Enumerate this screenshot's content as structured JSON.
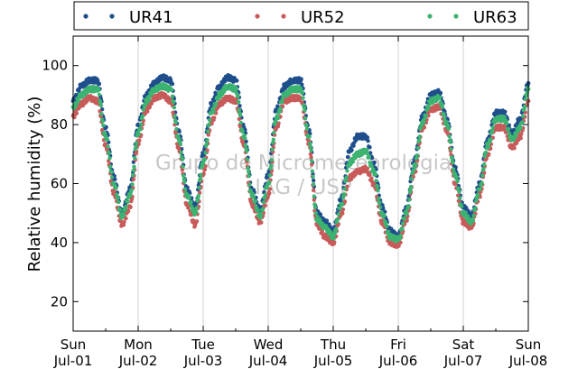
{
  "chart_data": {
    "type": "scatter",
    "title": "",
    "xlabel": "",
    "ylabel": "Relative humidity (%)",
    "ylim": [
      10,
      110
    ],
    "xlim": [
      "2000-07-01",
      "2000-07-08"
    ],
    "y_ticks": [
      20,
      40,
      60,
      80,
      100
    ],
    "x_ticks": [
      {
        "date": "2000-07-01",
        "day": "Sun",
        "label": "Jul-01"
      },
      {
        "date": "2000-07-02",
        "day": "Mon",
        "label": "Jul-02"
      },
      {
        "date": "2000-07-03",
        "day": "Tue",
        "label": "Jul-03"
      },
      {
        "date": "2000-07-04",
        "day": "Wed",
        "label": "Jul-04"
      },
      {
        "date": "2000-07-05",
        "day": "Thu",
        "label": "Jul-05"
      },
      {
        "date": "2000-07-06",
        "day": "Fri",
        "label": "Jul-06"
      },
      {
        "date": "2000-07-07",
        "day": "Sat",
        "label": "Jul-07"
      },
      {
        "date": "2000-07-08",
        "day": "Sun",
        "label": "Jul-08"
      }
    ],
    "grid": "vertical",
    "legend_position": "top",
    "watermark": [
      "Grupo de Micrometeorologia",
      "IAG / USP"
    ],
    "series": [
      {
        "name": "UR41",
        "color": "#1f4e8c",
        "x": [
          "2000-07-01 00:00",
          "2000-07-01 03:00",
          "2000-07-01 06:00",
          "2000-07-01 09:00",
          "2000-07-01 12:00",
          "2000-07-01 15:00",
          "2000-07-01 18:00",
          "2000-07-01 21:00",
          "2000-07-02 00:00",
          "2000-07-02 03:00",
          "2000-07-02 06:00",
          "2000-07-02 09:00",
          "2000-07-02 12:00",
          "2000-07-02 15:00",
          "2000-07-02 18:00",
          "2000-07-02 21:00",
          "2000-07-03 00:00",
          "2000-07-03 03:00",
          "2000-07-03 06:00",
          "2000-07-03 09:00",
          "2000-07-03 12:00",
          "2000-07-03 15:00",
          "2000-07-03 18:00",
          "2000-07-03 21:00",
          "2000-07-04 00:00",
          "2000-07-04 03:00",
          "2000-07-04 06:00",
          "2000-07-04 09:00",
          "2000-07-04 12:00",
          "2000-07-04 15:00",
          "2000-07-04 18:00",
          "2000-07-04 21:00",
          "2000-07-05 00:00",
          "2000-07-05 03:00",
          "2000-07-05 06:00",
          "2000-07-05 09:00",
          "2000-07-05 12:00",
          "2000-07-05 15:00",
          "2000-07-05 18:00",
          "2000-07-05 21:00",
          "2000-07-06 00:00",
          "2000-07-06 03:00",
          "2000-07-06 06:00",
          "2000-07-06 09:00",
          "2000-07-06 12:00",
          "2000-07-06 15:00",
          "2000-07-06 18:00",
          "2000-07-06 21:00",
          "2000-07-07 00:00",
          "2000-07-07 03:00",
          "2000-07-07 06:00",
          "2000-07-07 09:00",
          "2000-07-07 12:00",
          "2000-07-07 15:00",
          "2000-07-07 18:00",
          "2000-07-07 21:00",
          "2000-07-08 00:00"
        ],
        "y": [
          88,
          93,
          95,
          95,
          79,
          62,
          50,
          58,
          80,
          90,
          94,
          96,
          95,
          78,
          58,
          52,
          70,
          87,
          93,
          96,
          95,
          79,
          58,
          51,
          63,
          85,
          93,
          95,
          95,
          78,
          50,
          47,
          44,
          55,
          71,
          76,
          76,
          67,
          52,
          44,
          42,
          52,
          68,
          83,
          90,
          91,
          82,
          65,
          52,
          49,
          60,
          75,
          84,
          84,
          77,
          82,
          94
        ]
      },
      {
        "name": "UR52",
        "color": "#c85a5a",
        "x": [
          "2000-07-01 00:00",
          "2000-07-01 03:00",
          "2000-07-01 06:00",
          "2000-07-01 09:00",
          "2000-07-01 12:00",
          "2000-07-01 15:00",
          "2000-07-01 18:00",
          "2000-07-01 21:00",
          "2000-07-02 00:00",
          "2000-07-02 03:00",
          "2000-07-02 06:00",
          "2000-07-02 09:00",
          "2000-07-02 12:00",
          "2000-07-02 15:00",
          "2000-07-02 18:00",
          "2000-07-02 21:00",
          "2000-07-03 00:00",
          "2000-07-03 03:00",
          "2000-07-03 06:00",
          "2000-07-03 09:00",
          "2000-07-03 12:00",
          "2000-07-03 15:00",
          "2000-07-03 18:00",
          "2000-07-03 21:00",
          "2000-07-04 00:00",
          "2000-07-04 03:00",
          "2000-07-04 06:00",
          "2000-07-04 09:00",
          "2000-07-04 12:00",
          "2000-07-04 15:00",
          "2000-07-04 18:00",
          "2000-07-04 21:00",
          "2000-07-05 00:00",
          "2000-07-05 03:00",
          "2000-07-05 06:00",
          "2000-07-05 09:00",
          "2000-07-05 12:00",
          "2000-07-05 15:00",
          "2000-07-05 18:00",
          "2000-07-05 21:00",
          "2000-07-06 00:00",
          "2000-07-06 03:00",
          "2000-07-06 06:00",
          "2000-07-06 09:00",
          "2000-07-06 12:00",
          "2000-07-06 15:00",
          "2000-07-06 18:00",
          "2000-07-06 21:00",
          "2000-07-07 00:00",
          "2000-07-07 03:00",
          "2000-07-07 06:00",
          "2000-07-07 09:00",
          "2000-07-07 12:00",
          "2000-07-07 15:00",
          "2000-07-07 18:00",
          "2000-07-07 21:00",
          "2000-07-08 00:00"
        ],
        "y": [
          83,
          87,
          89,
          88,
          73,
          57,
          46,
          52,
          74,
          85,
          89,
          90,
          88,
          72,
          53,
          46,
          63,
          81,
          87,
          89,
          88,
          73,
          53,
          47,
          56,
          79,
          88,
          89,
          89,
          74,
          46,
          42,
          40,
          50,
          62,
          64,
          65,
          60,
          47,
          40,
          39,
          48,
          64,
          79,
          85,
          86,
          78,
          60,
          47,
          45,
          56,
          70,
          79,
          79,
          72,
          76,
          88
        ]
      },
      {
        "name": "UR63",
        "color": "#3cb371",
        "x": [
          "2000-07-01 00:00",
          "2000-07-01 03:00",
          "2000-07-01 06:00",
          "2000-07-01 09:00",
          "2000-07-01 12:00",
          "2000-07-01 15:00",
          "2000-07-01 18:00",
          "2000-07-01 21:00",
          "2000-07-02 00:00",
          "2000-07-02 03:00",
          "2000-07-02 06:00",
          "2000-07-02 09:00",
          "2000-07-02 12:00",
          "2000-07-02 15:00",
          "2000-07-02 18:00",
          "2000-07-02 21:00",
          "2000-07-03 00:00",
          "2000-07-03 03:00",
          "2000-07-03 06:00",
          "2000-07-03 09:00",
          "2000-07-03 12:00",
          "2000-07-03 15:00",
          "2000-07-03 18:00",
          "2000-07-03 21:00",
          "2000-07-04 00:00",
          "2000-07-04 03:00",
          "2000-07-04 06:00",
          "2000-07-04 09:00",
          "2000-07-04 12:00",
          "2000-07-04 15:00",
          "2000-07-04 18:00",
          "2000-07-04 21:00",
          "2000-07-05 00:00",
          "2000-07-05 03:00",
          "2000-07-05 06:00",
          "2000-07-05 09:00",
          "2000-07-05 12:00",
          "2000-07-05 15:00",
          "2000-07-05 18:00",
          "2000-07-05 21:00",
          "2000-07-06 00:00",
          "2000-07-06 03:00",
          "2000-07-06 06:00",
          "2000-07-06 09:00",
          "2000-07-06 12:00",
          "2000-07-06 15:00",
          "2000-07-06 18:00",
          "2000-07-06 21:00",
          "2000-07-07 00:00",
          "2000-07-07 03:00",
          "2000-07-07 06:00",
          "2000-07-07 09:00",
          "2000-07-07 12:00",
          "2000-07-07 15:00",
          "2000-07-07 18:00",
          "2000-07-07 21:00",
          "2000-07-08 00:00"
        ],
        "y": [
          86,
          90,
          92,
          92,
          76,
          60,
          49,
          56,
          77,
          88,
          92,
          93,
          92,
          75,
          56,
          50,
          67,
          84,
          90,
          93,
          92,
          76,
          56,
          49,
          60,
          82,
          90,
          92,
          92,
          76,
          48,
          45,
          42,
          53,
          67,
          70,
          71,
          64,
          50,
          42,
          41,
          50,
          66,
          81,
          88,
          89,
          80,
          63,
          50,
          47,
          58,
          73,
          82,
          82,
          75,
          79,
          92
        ]
      }
    ]
  }
}
